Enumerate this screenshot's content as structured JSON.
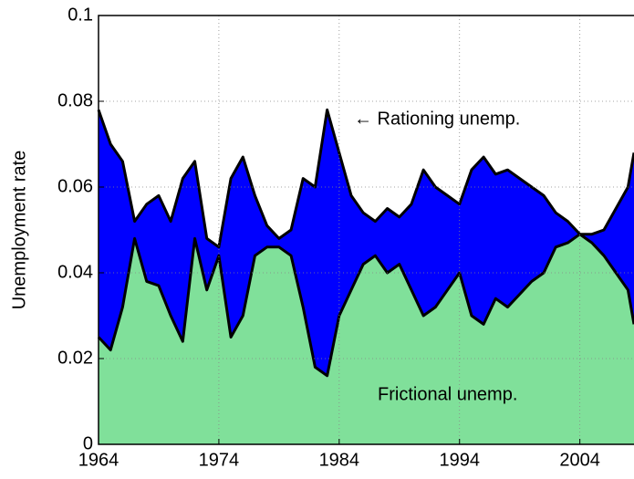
{
  "chart_data": {
    "type": "stacked-area",
    "ylabel": "Unemployment rate",
    "x": [
      1964,
      1965,
      1966,
      1967,
      1968,
      1969,
      1970,
      1971,
      1972,
      1973,
      1974,
      1975,
      1976,
      1977,
      1978,
      1979,
      1980,
      1981,
      1982,
      1983,
      1984,
      1985,
      1986,
      1987,
      1988,
      1989,
      1990,
      1991,
      1992,
      1993,
      1994,
      1995,
      1996,
      1997,
      1998,
      1999,
      2000,
      2001,
      2002,
      2003,
      2004,
      2005,
      2006,
      2007,
      2008,
      2008.5
    ],
    "series": [
      {
        "name": "Frictional unemp.",
        "color": "#80e09a",
        "values": [
          0.025,
          0.022,
          0.032,
          0.048,
          0.038,
          0.037,
          0.03,
          0.024,
          0.048,
          0.036,
          0.044,
          0.025,
          0.03,
          0.044,
          0.046,
          0.046,
          0.044,
          0.032,
          0.018,
          0.016,
          0.03,
          0.036,
          0.042,
          0.044,
          0.04,
          0.042,
          0.036,
          0.03,
          0.032,
          0.036,
          0.04,
          0.03,
          0.028,
          0.034,
          0.032,
          0.035,
          0.038,
          0.04,
          0.046,
          0.047,
          0.049,
          0.047,
          0.044,
          0.04,
          0.036,
          0.028
        ]
      },
      {
        "name": "← Rationing unemp.",
        "color": "#0000ff",
        "values": [
          0.053,
          0.048,
          0.034,
          0.004,
          0.018,
          0.021,
          0.022,
          0.038,
          0.018,
          0.012,
          0.002,
          0.037,
          0.037,
          0.014,
          0.005,
          0.002,
          0.006,
          0.03,
          0.042,
          0.062,
          0.038,
          0.022,
          0.012,
          0.008,
          0.015,
          0.011,
          0.02,
          0.034,
          0.028,
          0.022,
          0.016,
          0.034,
          0.039,
          0.029,
          0.032,
          0.027,
          0.022,
          0.018,
          0.008,
          0.005,
          0,
          0.002,
          0.006,
          0.015,
          0.024,
          0.04
        ]
      }
    ],
    "xlim": [
      1964,
      2008.5
    ],
    "xticks": [
      1964,
      1974,
      1984,
      1994,
      2004
    ],
    "ylim": [
      0,
      0.1
    ],
    "yticks": [
      0,
      0.02,
      0.04,
      0.06,
      0.08,
      0.1
    ],
    "grid": true
  }
}
